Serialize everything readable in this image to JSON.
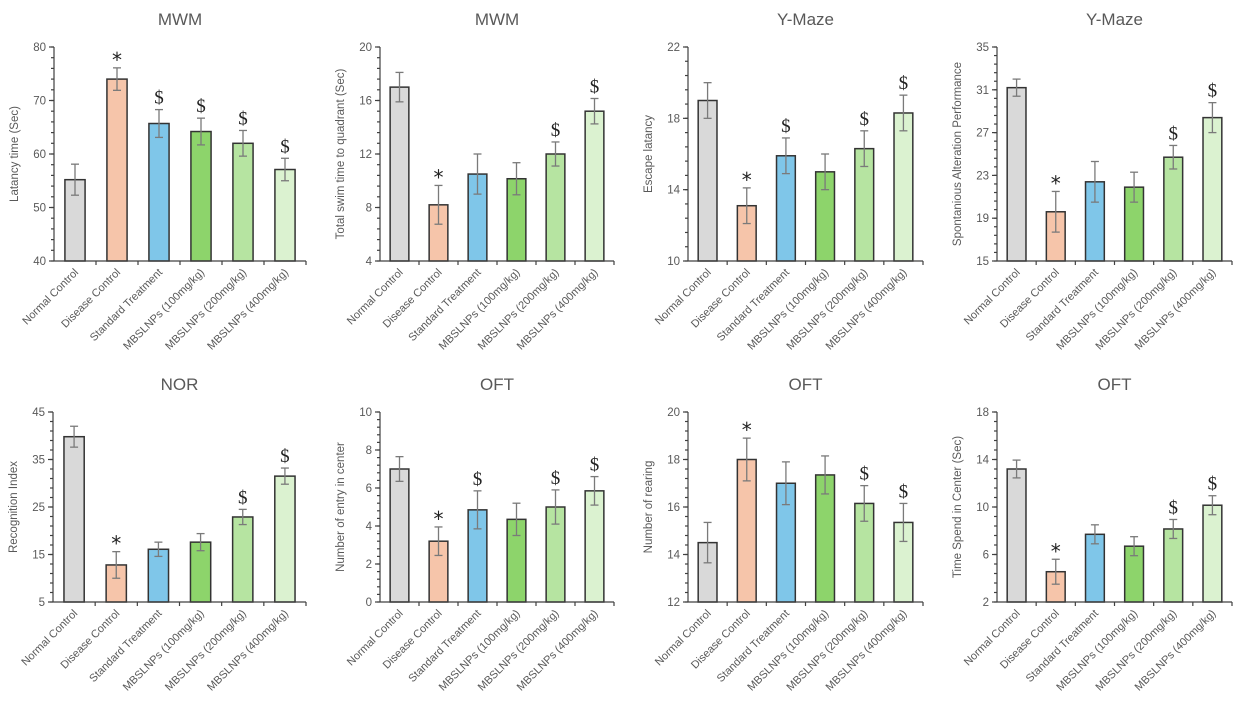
{
  "groups": [
    "Normal Control",
    "Disease Control",
    "Standard Treatment",
    "MBSLNPs (100mg/kg)",
    "MBSLNPs (200mg/kg)",
    "MBSLNPs (400mg/kg)"
  ],
  "group_colors": [
    "#d9d9d9",
    "#f6c5aa",
    "#7fc6e9",
    "#8dd46b",
    "#b6e4a1",
    "#dbf2d0"
  ],
  "chart_data": [
    {
      "type": "bar",
      "title": "MWM",
      "xlabel": "",
      "ylabel": "Latancy time (Sec)",
      "categories": [
        "Normal Control",
        "Disease Control",
        "Standard Treatment",
        "MBSLNPs (100mg/kg)",
        "MBSLNPs (200mg/kg)",
        "MBSLNPs (400mg/kg)"
      ],
      "values": [
        55.2,
        74.0,
        65.7,
        64.2,
        62.0,
        57.1
      ],
      "errors": [
        2.9,
        2.1,
        2.6,
        2.5,
        2.4,
        2.1
      ],
      "significance": [
        "",
        "*",
        "$",
        "$",
        "$",
        "$"
      ],
      "ylim": [
        40,
        80
      ],
      "yticks": [
        40,
        50,
        60,
        70,
        80
      ],
      "minor_step": 2,
      "grid": false
    },
    {
      "type": "bar",
      "title": "MWM",
      "xlabel": "",
      "ylabel": "Total swim time to quadrant (Sec)",
      "categories": [
        "Normal Control",
        "Disease Control",
        "Standard Treatment",
        "MBSLNPs (100mg/kg)",
        "MBSLNPs (200mg/kg)",
        "MBSLNPs (400mg/kg)"
      ],
      "values": [
        17.0,
        8.2,
        10.5,
        10.15,
        12.0,
        15.2
      ],
      "errors": [
        1.1,
        1.45,
        1.5,
        1.2,
        0.9,
        0.95
      ],
      "significance": [
        "",
        "*",
        "",
        "",
        "$",
        "$"
      ],
      "ylim": [
        4,
        20
      ],
      "yticks": [
        4,
        8,
        12,
        16,
        20
      ],
      "minor_step": 0.8,
      "grid": false
    },
    {
      "type": "bar",
      "title": "Y-Maze",
      "xlabel": "",
      "ylabel": "Escape latancy",
      "categories": [
        "Normal Control",
        "Disease Control",
        "Standard Treatment",
        "MBSLNPs (100mg/kg)",
        "MBSLNPs (200mg/kg)",
        "MBSLNPs (400mg/kg)"
      ],
      "values": [
        19.0,
        13.1,
        15.9,
        15.0,
        16.3,
        18.3
      ],
      "errors": [
        1.0,
        1.0,
        1.0,
        1.0,
        1.0,
        1.0
      ],
      "significance": [
        "",
        "*",
        "$",
        "",
        "$",
        "$"
      ],
      "ylim": [
        10,
        22
      ],
      "yticks": [
        10,
        14,
        18,
        22
      ],
      "minor_step": 0.8,
      "grid": false
    },
    {
      "type": "bar",
      "title": "Y-Maze",
      "xlabel": "",
      "ylabel": "Spontanious Alteration Performance",
      "categories": [
        "Normal Control",
        "Disease Control",
        "Standard Treatment",
        "MBSLNPs (100mg/kg)",
        "MBSLNPs (200mg/kg)",
        "MBSLNPs (400mg/kg)"
      ],
      "values": [
        31.2,
        19.6,
        22.4,
        21.9,
        24.7,
        28.4
      ],
      "errors": [
        0.8,
        1.9,
        1.9,
        1.4,
        1.1,
        1.4
      ],
      "significance": [
        "",
        "*",
        "",
        "",
        "$",
        "$"
      ],
      "ylim": [
        15,
        35
      ],
      "yticks": [
        15,
        19,
        23,
        27,
        31,
        35
      ],
      "minor_step": 0.8,
      "grid": false
    },
    {
      "type": "bar",
      "title": "NOR",
      "xlabel": "",
      "ylabel": "Recognition Index",
      "categories": [
        "Normal Control",
        "Disease Control",
        "Standard Treatment",
        "MBSLNPs (100mg/kg)",
        "MBSLNPs (200mg/kg)",
        "MBSLNPs (400mg/kg)"
      ],
      "values": [
        39.8,
        12.8,
        16.1,
        17.6,
        22.9,
        31.5
      ],
      "errors": [
        2.2,
        2.8,
        1.5,
        1.8,
        1.6,
        1.7
      ],
      "significance": [
        "",
        "*",
        "",
        "",
        "$",
        "$"
      ],
      "ylim": [
        5,
        45
      ],
      "yticks": [
        5,
        15,
        25,
        35,
        45
      ],
      "minor_step": 2,
      "grid": false
    },
    {
      "type": "bar",
      "title": "OFT",
      "xlabel": "",
      "ylabel": "Number of entry in center",
      "categories": [
        "Normal Control",
        "Disease Control",
        "Standard Treatment",
        "MBSLNPs (100mg/kg)",
        "MBSLNPs (200mg/kg)",
        "MBSLNPs (400mg/kg)"
      ],
      "values": [
        7.0,
        3.2,
        4.85,
        4.35,
        5.0,
        5.85
      ],
      "errors": [
        0.65,
        0.75,
        1.0,
        0.85,
        0.9,
        0.75
      ],
      "significance": [
        "",
        "*",
        "$",
        "",
        "$",
        "$"
      ],
      "ylim": [
        0,
        10
      ],
      "yticks": [
        0,
        2,
        4,
        6,
        8,
        10
      ],
      "minor_step": 0.4,
      "grid": false
    },
    {
      "type": "bar",
      "title": "OFT",
      "xlabel": "",
      "ylabel": "Number of rearing",
      "categories": [
        "Normal Control",
        "Disease Control",
        "Standard Treatment",
        "MBSLNPs (100mg/kg)",
        "MBSLNPs (200mg/kg)",
        "MBSLNPs (400mg/kg)"
      ],
      "values": [
        14.5,
        18.0,
        17.0,
        17.35,
        16.15,
        15.35
      ],
      "errors": [
        0.85,
        0.9,
        0.9,
        0.8,
        0.75,
        0.8
      ],
      "significance": [
        "",
        "*",
        "",
        "",
        "$",
        "$"
      ],
      "ylim": [
        12,
        20
      ],
      "yticks": [
        12,
        14,
        16,
        18,
        20
      ],
      "minor_step": 0.4,
      "grid": false
    },
    {
      "type": "bar",
      "title": "OFT",
      "xlabel": "",
      "ylabel": "Time Spend in Center (Sec)",
      "categories": [
        "Normal Control",
        "Disease Control",
        "Standard Treatment",
        "MBSLNPs (100mg/kg)",
        "MBSLNPs (200mg/kg)",
        "MBSLNPs (400mg/kg)"
      ],
      "values": [
        13.2,
        4.55,
        7.7,
        6.7,
        8.15,
        10.15
      ],
      "errors": [
        0.75,
        1.05,
        0.8,
        0.8,
        0.8,
        0.8
      ],
      "significance": [
        "",
        "*",
        "",
        "",
        "$",
        "$"
      ],
      "ylim": [
        2,
        18
      ],
      "yticks": [
        2,
        6,
        10,
        14,
        18
      ],
      "minor_step": 0.8,
      "grid": false
    }
  ]
}
